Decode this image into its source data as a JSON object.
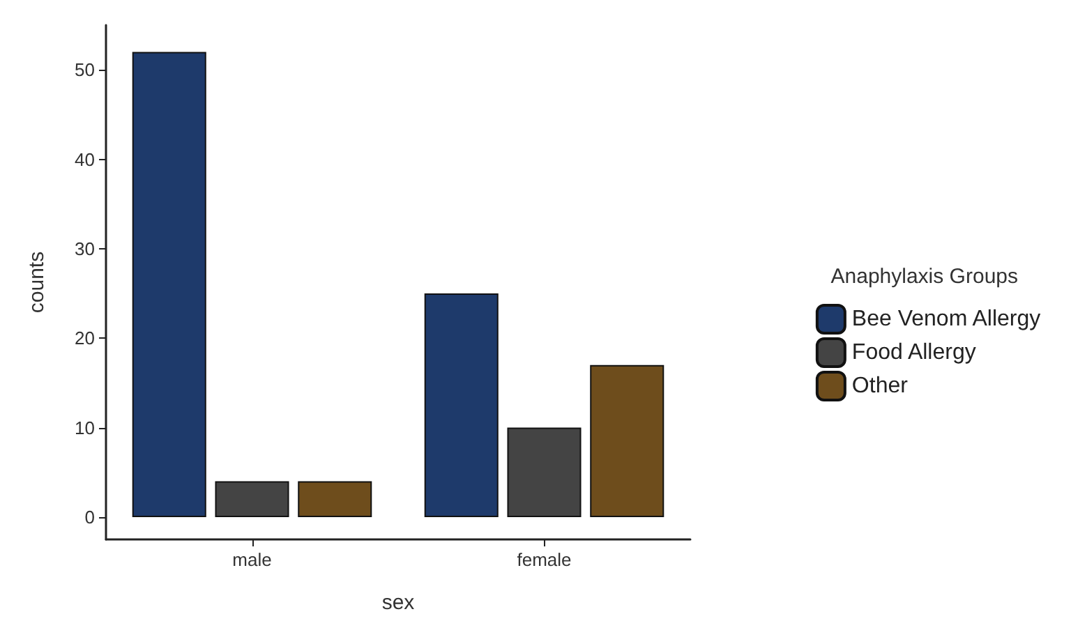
{
  "chart_data": {
    "type": "bar",
    "xlabel": "sex",
    "ylabel": "counts",
    "legend_title": "Anaphylaxis Groups",
    "categories": [
      "male",
      "female"
    ],
    "series": [
      {
        "name": "Bee Venom Allergy",
        "color": "#1e3a6b",
        "values": [
          52,
          25
        ]
      },
      {
        "name": "Food Allergy",
        "color": "#444444",
        "values": [
          4,
          10
        ]
      },
      {
        "name": "Other",
        "color": "#6e4d1c",
        "values": [
          4,
          17
        ]
      }
    ],
    "ylim": [
      -2.5,
      55
    ],
    "yticks": [
      0,
      10,
      20,
      30,
      40,
      50
    ],
    "grid": false,
    "legend": "right"
  }
}
